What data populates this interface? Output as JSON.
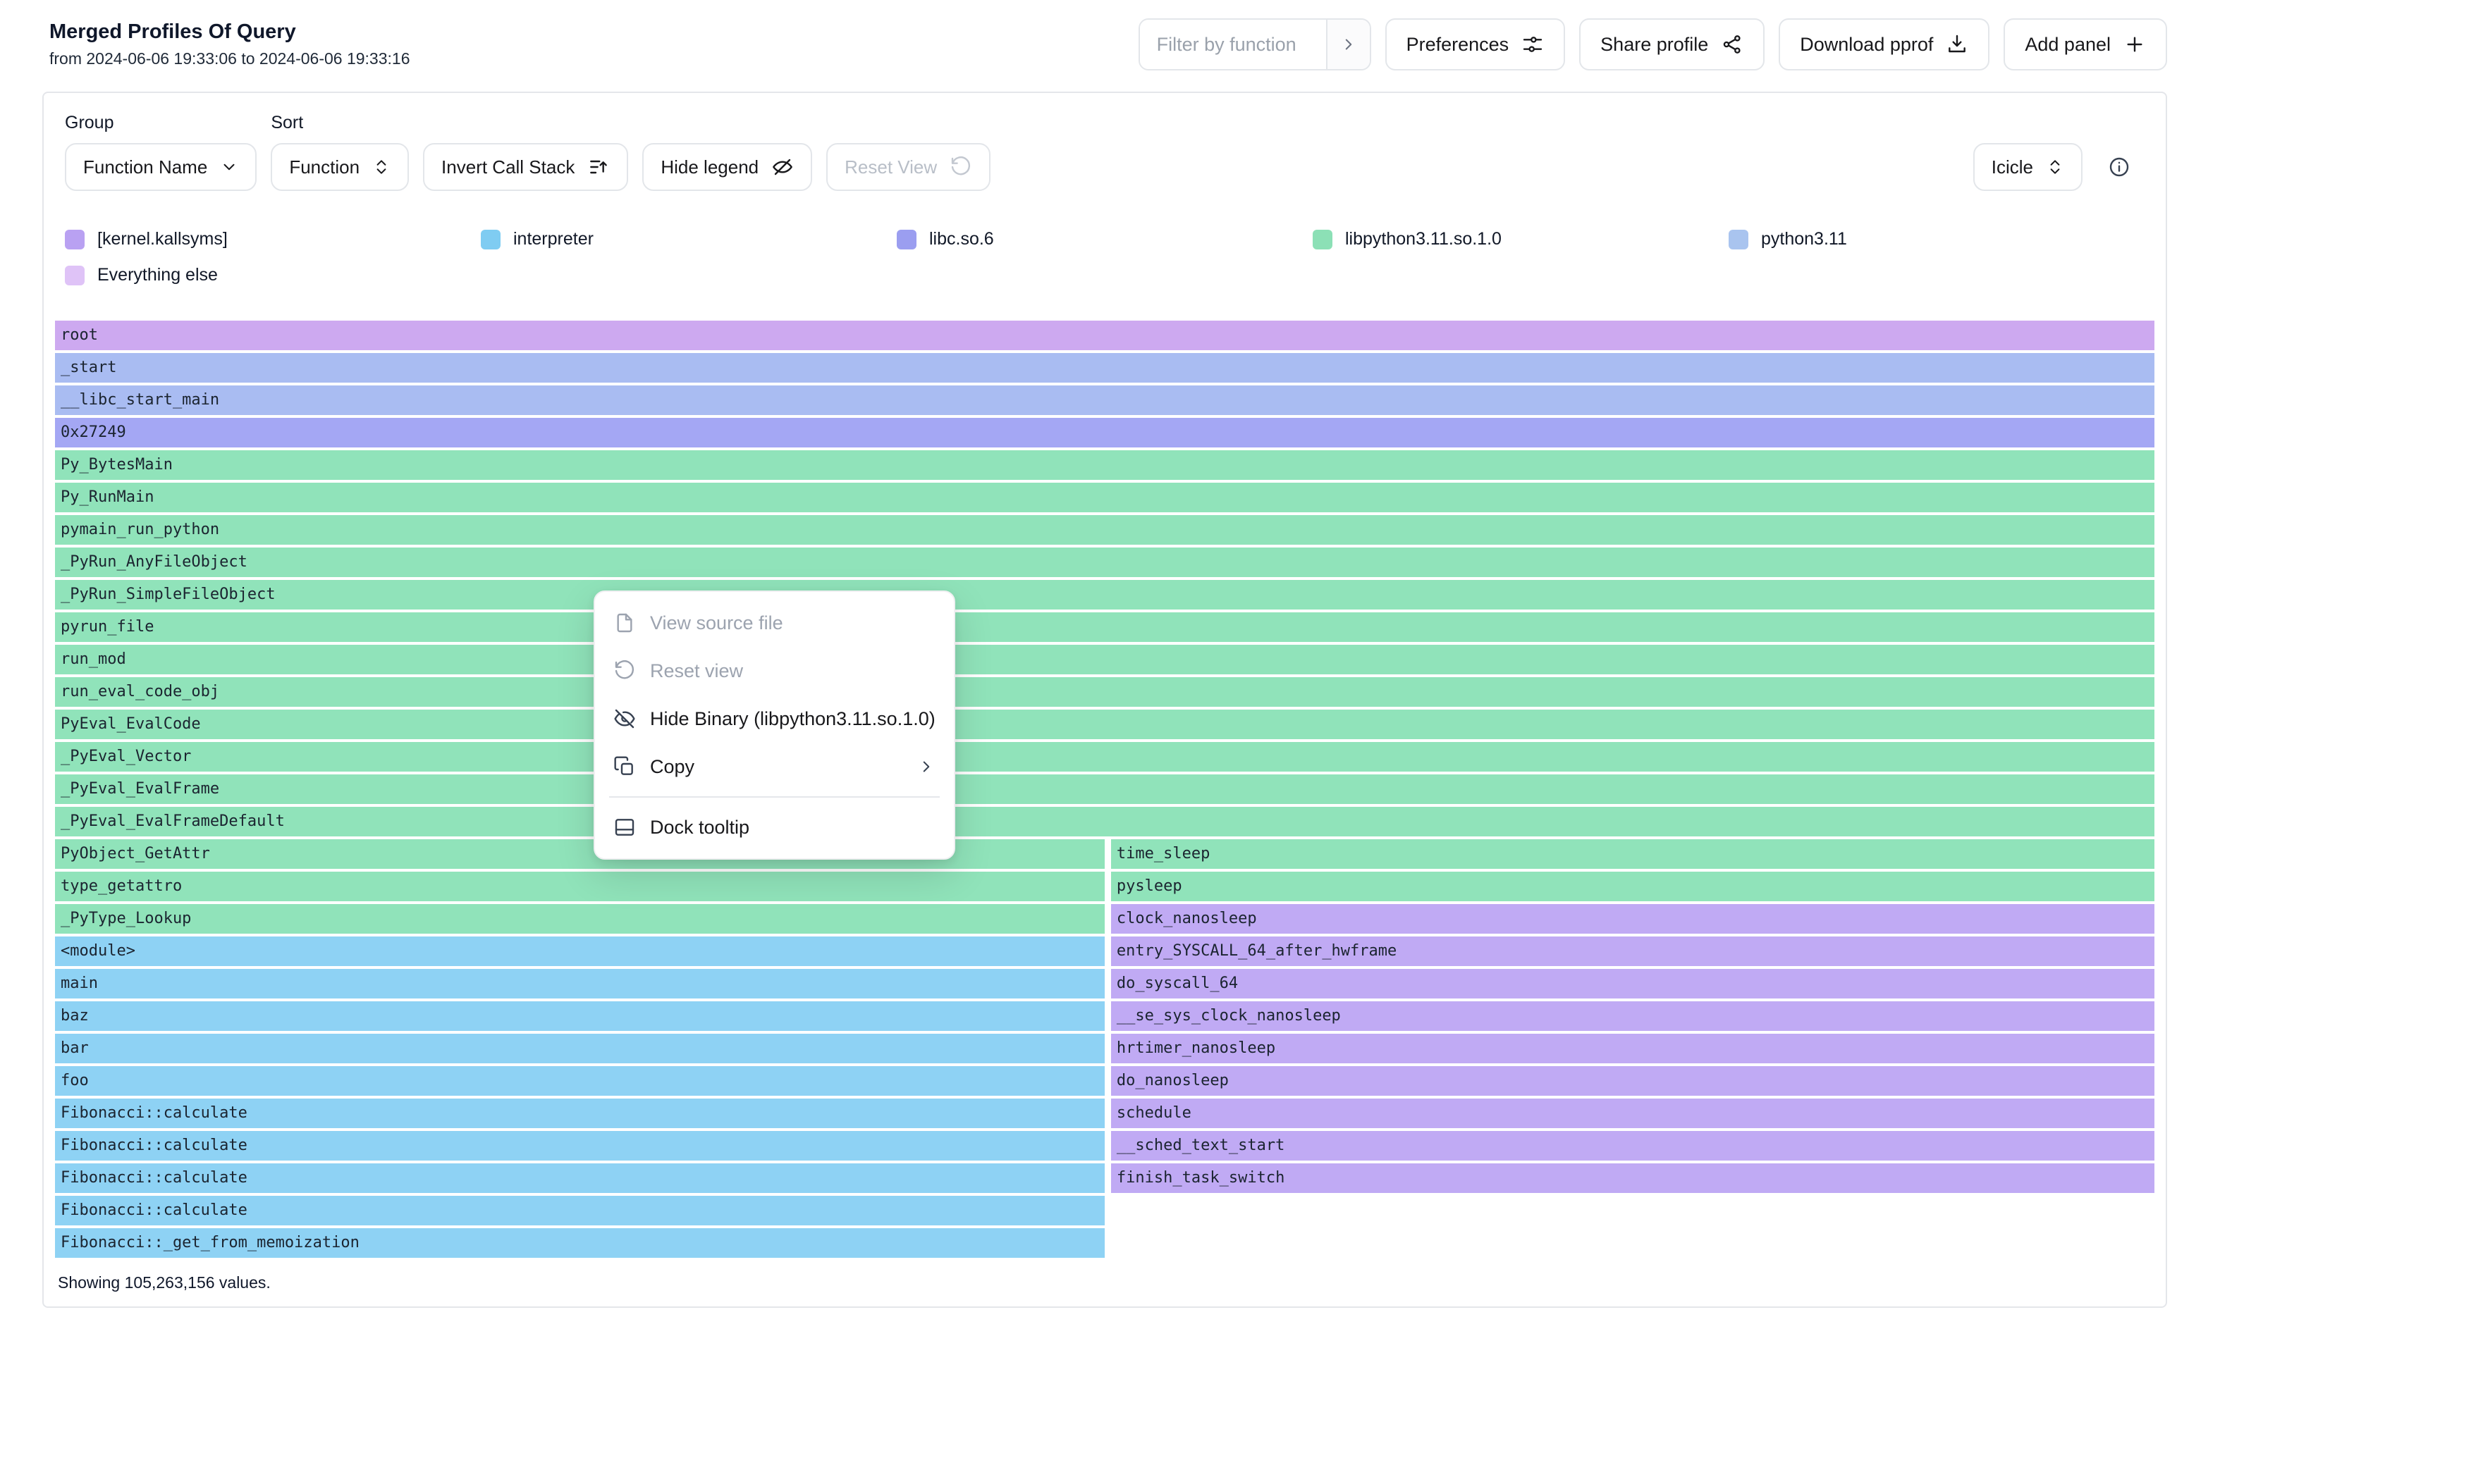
{
  "header": {
    "title": "Merged Profiles Of Query",
    "subtitle": "from 2024-06-06 19:33:06 to 2024-06-06 19:33:16",
    "filter_placeholder": "Filter by function",
    "actions": {
      "preferences": "Preferences",
      "share": "Share profile",
      "download": "Download pprof",
      "add_panel": "Add panel"
    }
  },
  "toolbar": {
    "group_label": "Group",
    "group_value": "Function Name",
    "sort_label": "Sort",
    "sort_value": "Function",
    "invert_label": "Invert Call Stack",
    "hide_legend_label": "Hide legend",
    "reset_view_label": "Reset View",
    "view_type": "Icicle"
  },
  "legend": {
    "items": [
      {
        "label": "[kernel.kallsyms]",
        "color": "#b9a1f2"
      },
      {
        "label": "interpreter",
        "color": "#7fccf2"
      },
      {
        "label": "libc.so.6",
        "color": "#9b9ef0"
      },
      {
        "label": "libpython3.11.so.1.0",
        "color": "#8ce0b6"
      },
      {
        "label": "python3.11",
        "color": "#a9c4ef"
      },
      {
        "label": "Everything else",
        "color": "#dfc3f7"
      }
    ]
  },
  "chart_data": {
    "type": "icicle",
    "title": "Merged Profiles Of Query",
    "total_values": "105,263,156",
    "palette": {
      "kernel.kallsyms": "#c0aaf4",
      "interpreter": "#8ed2f4",
      "libc.so.6": "#a4a7f4",
      "libpython3.11.so.1.0": "#90e3ba",
      "python3.11": "#a9bcf2",
      "everything_else": "#cda9f0"
    },
    "rows": [
      {
        "cells": [
          {
            "label": "root",
            "binary": "everything_else",
            "x": 0,
            "w": 100
          }
        ]
      },
      {
        "cells": [
          {
            "label": "_start",
            "binary": "python3.11",
            "x": 0,
            "w": 100
          }
        ]
      },
      {
        "cells": [
          {
            "label": "__libc_start_main",
            "binary": "python3.11",
            "x": 0,
            "w": 100
          }
        ]
      },
      {
        "cells": [
          {
            "label": "0x27249",
            "binary": "libc.so.6",
            "x": 0,
            "w": 100
          }
        ]
      },
      {
        "cells": [
          {
            "label": "Py_BytesMain",
            "binary": "libpython3.11.so.1.0",
            "x": 0,
            "w": 100
          }
        ]
      },
      {
        "cells": [
          {
            "label": "Py_RunMain",
            "binary": "libpython3.11.so.1.0",
            "x": 0,
            "w": 100
          }
        ]
      },
      {
        "cells": [
          {
            "label": "pymain_run_python",
            "binary": "libpython3.11.so.1.0",
            "x": 0,
            "w": 100
          }
        ]
      },
      {
        "cells": [
          {
            "label": "_PyRun_AnyFileObject",
            "binary": "libpython3.11.so.1.0",
            "x": 0,
            "w": 100
          }
        ]
      },
      {
        "cells": [
          {
            "label": "_PyRun_SimpleFileObject",
            "binary": "libpython3.11.so.1.0",
            "x": 0,
            "w": 100
          }
        ]
      },
      {
        "cells": [
          {
            "label": "pyrun_file",
            "binary": "libpython3.11.so.1.0",
            "x": 0,
            "w": 100
          }
        ]
      },
      {
        "cells": [
          {
            "label": "run_mod",
            "binary": "libpython3.11.so.1.0",
            "x": 0,
            "w": 100
          }
        ]
      },
      {
        "cells": [
          {
            "label": "run_eval_code_obj",
            "binary": "libpython3.11.so.1.0",
            "x": 0,
            "w": 100
          }
        ]
      },
      {
        "cells": [
          {
            "label": "PyEval_EvalCode",
            "binary": "libpython3.11.so.1.0",
            "x": 0,
            "w": 100
          }
        ]
      },
      {
        "cells": [
          {
            "label": "_PyEval_Vector",
            "binary": "libpython3.11.so.1.0",
            "x": 0,
            "w": 100
          }
        ]
      },
      {
        "cells": [
          {
            "label": "_PyEval_EvalFrame",
            "binary": "libpython3.11.so.1.0",
            "x": 0,
            "w": 100
          }
        ]
      },
      {
        "cells": [
          {
            "label": "_PyEval_EvalFrameDefault",
            "binary": "libpython3.11.so.1.0",
            "x": 0,
            "w": 100
          }
        ]
      },
      {
        "cells": [
          {
            "label": "PyObject_GetAttr",
            "binary": "libpython3.11.so.1.0",
            "x": 0,
            "w": 50
          },
          {
            "label": "time_sleep",
            "binary": "libpython3.11.so.1.0",
            "x": 50.3,
            "w": 49.7
          }
        ]
      },
      {
        "cells": [
          {
            "label": "type_getattro",
            "binary": "libpython3.11.so.1.0",
            "x": 0,
            "w": 50
          },
          {
            "label": "pysleep",
            "binary": "libpython3.11.so.1.0",
            "x": 50.3,
            "w": 49.7
          }
        ]
      },
      {
        "cells": [
          {
            "label": "_PyType_Lookup",
            "binary": "libpython3.11.so.1.0",
            "x": 0,
            "w": 50
          },
          {
            "label": "clock_nanosleep",
            "binary": "kernel.kallsyms",
            "x": 50.3,
            "w": 49.7
          }
        ]
      },
      {
        "cells": [
          {
            "label": "<module>",
            "binary": "interpreter",
            "x": 0,
            "w": 50
          },
          {
            "label": "entry_SYSCALL_64_after_hwframe",
            "binary": "kernel.kallsyms",
            "x": 50.3,
            "w": 49.7
          }
        ]
      },
      {
        "cells": [
          {
            "label": "main",
            "binary": "interpreter",
            "x": 0,
            "w": 50
          },
          {
            "label": "do_syscall_64",
            "binary": "kernel.kallsyms",
            "x": 50.3,
            "w": 49.7
          }
        ]
      },
      {
        "cells": [
          {
            "label": "baz",
            "binary": "interpreter",
            "x": 0,
            "w": 50
          },
          {
            "label": "__se_sys_clock_nanosleep",
            "binary": "kernel.kallsyms",
            "x": 50.3,
            "w": 49.7
          }
        ]
      },
      {
        "cells": [
          {
            "label": "bar",
            "binary": "interpreter",
            "x": 0,
            "w": 50
          },
          {
            "label": "hrtimer_nanosleep",
            "binary": "kernel.kallsyms",
            "x": 50.3,
            "w": 49.7
          }
        ]
      },
      {
        "cells": [
          {
            "label": "foo",
            "binary": "interpreter",
            "x": 0,
            "w": 50
          },
          {
            "label": "do_nanosleep",
            "binary": "kernel.kallsyms",
            "x": 50.3,
            "w": 49.7
          }
        ]
      },
      {
        "cells": [
          {
            "label": "Fibonacci::calculate",
            "binary": "interpreter",
            "x": 0,
            "w": 50
          },
          {
            "label": "schedule",
            "binary": "kernel.kallsyms",
            "x": 50.3,
            "w": 49.7
          }
        ]
      },
      {
        "cells": [
          {
            "label": "Fibonacci::calculate",
            "binary": "interpreter",
            "x": 0,
            "w": 50
          },
          {
            "label": "__sched_text_start",
            "binary": "kernel.kallsyms",
            "x": 50.3,
            "w": 49.7
          }
        ]
      },
      {
        "cells": [
          {
            "label": "Fibonacci::calculate",
            "binary": "interpreter",
            "x": 0,
            "w": 50
          },
          {
            "label": "finish_task_switch",
            "binary": "kernel.kallsyms",
            "x": 50.3,
            "w": 49.7
          }
        ]
      },
      {
        "cells": [
          {
            "label": "Fibonacci::calculate",
            "binary": "interpreter",
            "x": 0,
            "w": 50
          }
        ]
      },
      {
        "cells": [
          {
            "label": "Fibonacci::_get_from_memoization",
            "binary": "interpreter",
            "x": 0,
            "w": 50
          }
        ]
      }
    ]
  },
  "context_menu": {
    "items": [
      {
        "label": "View source file",
        "icon": "file-icon",
        "disabled": true
      },
      {
        "label": "Reset view",
        "icon": "reset-icon",
        "disabled": true
      },
      {
        "label": "Hide Binary (libpython3.11.so.1.0)",
        "icon": "eye-off-icon"
      },
      {
        "label": "Copy",
        "icon": "copy-icon",
        "submenu": true
      },
      {
        "divider": true
      },
      {
        "label": "Dock tooltip",
        "icon": "dock-icon"
      }
    ]
  },
  "footer": {
    "summary": "Showing 105,263,156 values."
  }
}
